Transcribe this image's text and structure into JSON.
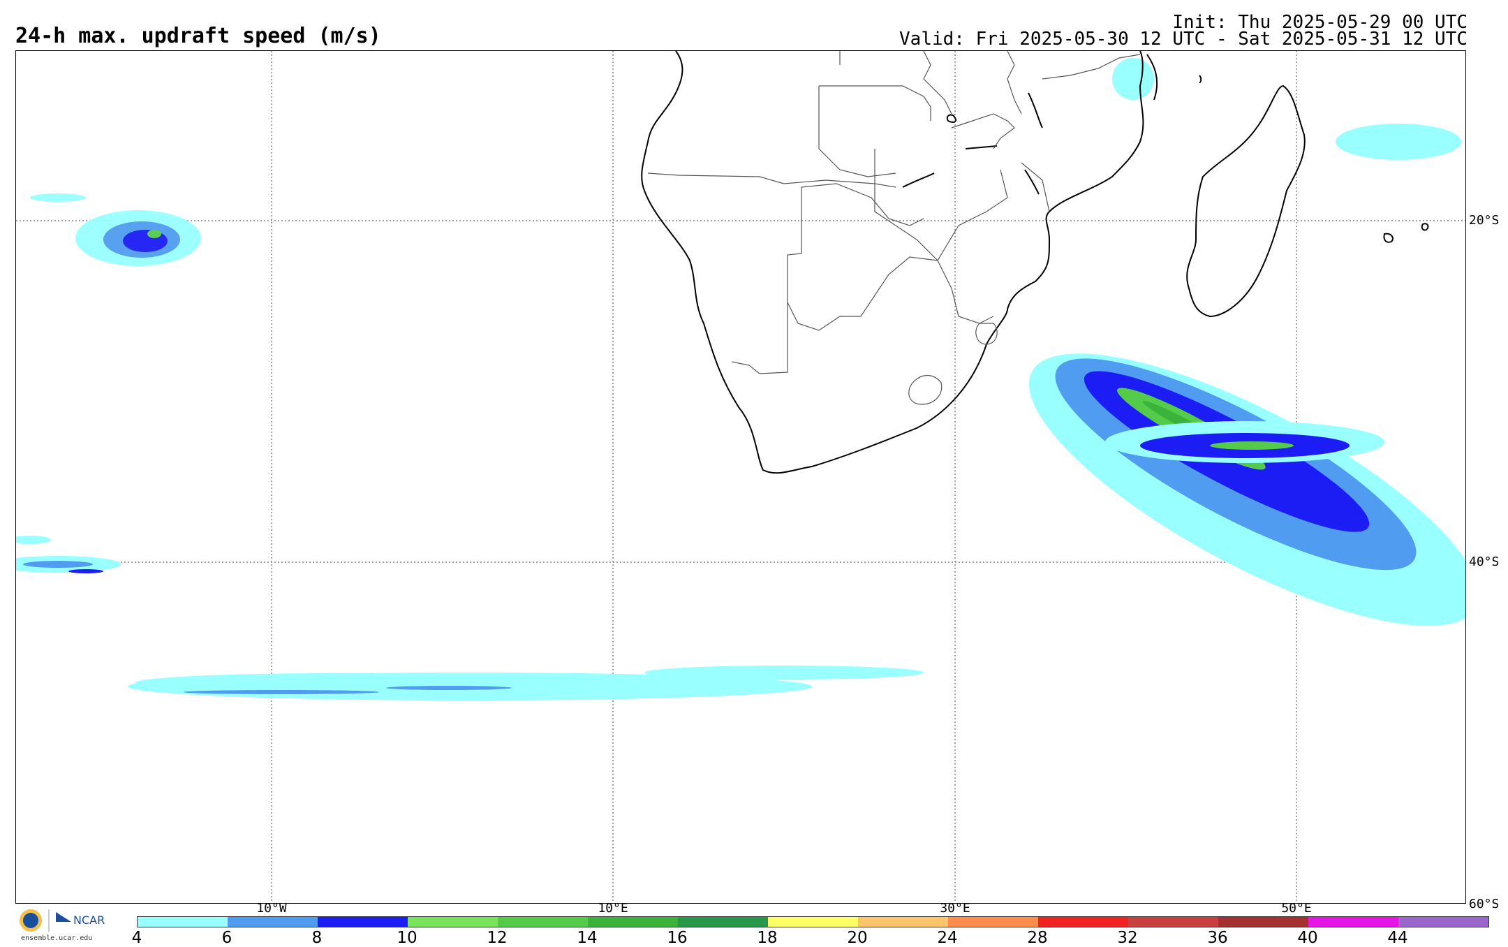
{
  "header": {
    "title": "24-h max. updraft speed (m/s)",
    "init": "Init: Thu 2025-05-29 00 UTC",
    "valid": "Valid: Fri 2025-05-30 12 UTC - Sat 2025-05-31 12 UTC"
  },
  "map": {
    "lat_labels": [
      "20°S",
      "40°S",
      "60°S"
    ],
    "lon_labels": [
      "10°W",
      "10°E",
      "30°E",
      "50°E"
    ]
  },
  "colorbar": {
    "ticks": [
      "4",
      "6",
      "8",
      "10",
      "12",
      "14",
      "16",
      "18",
      "20",
      "24",
      "28",
      "32",
      "36",
      "40",
      "44"
    ],
    "colors": [
      "#99ffff",
      "#4f9cf0",
      "#1c1cf5",
      "#7be25c",
      "#54cc4a",
      "#3bb23c",
      "#279847",
      "#ffff66",
      "#ffc56b",
      "#ff8c4d",
      "#f22222",
      "#c84040",
      "#a53030",
      "#e615e6",
      "#9966cc"
    ]
  },
  "footer": {
    "site": "ensemble.ucar.edu",
    "org": "NCAR"
  }
}
